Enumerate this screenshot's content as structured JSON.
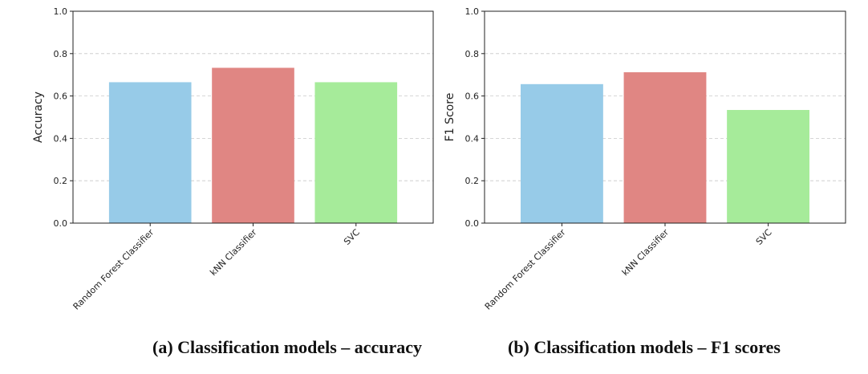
{
  "chart_data": [
    {
      "type": "bar",
      "categories": [
        "Random Forest Classifier",
        "kNN Classifier",
        "SVC"
      ],
      "values": [
        0.665,
        0.733,
        0.665
      ],
      "colors": [
        "#97cbe8",
        "#e08683",
        "#a6eb9a"
      ],
      "title": "",
      "xlabel": "",
      "ylabel": "Accuracy",
      "ylim": [
        0,
        1.0
      ],
      "yticks": [
        "0.0",
        "0.2",
        "0.4",
        "0.6",
        "0.8",
        "1.0"
      ],
      "grid": "y-dashed",
      "caption": "(a) Classification models – accuracy"
    },
    {
      "type": "bar",
      "categories": [
        "Random Forest Classifier",
        "kNN Classifier",
        "SVC"
      ],
      "values": [
        0.656,
        0.712,
        0.534
      ],
      "colors": [
        "#97cbe8",
        "#e08683",
        "#a6eb9a"
      ],
      "title": "",
      "xlabel": "",
      "ylabel": "F1 Score",
      "ylim": [
        0,
        1.0
      ],
      "yticks": [
        "0.0",
        "0.2",
        "0.4",
        "0.6",
        "0.8",
        "1.0"
      ],
      "grid": "y-dashed",
      "caption": "(b) Classification models – F1 scores"
    }
  ]
}
